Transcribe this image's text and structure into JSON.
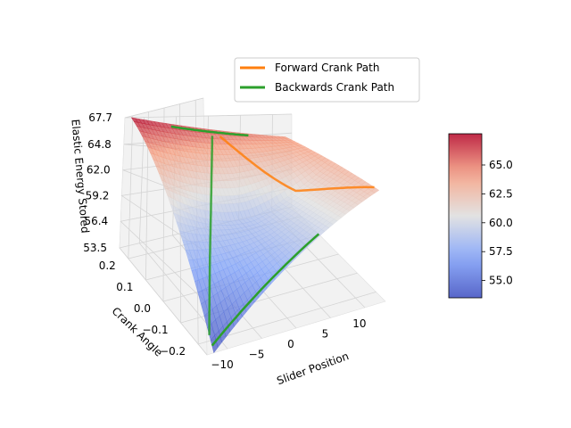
{
  "chart_data": {
    "type": "surface",
    "xlabel": "Slider Position",
    "ylabel": "Crank Angle",
    "zlabel": "Elastic Energy Stored",
    "xlim": [
      -13,
      13
    ],
    "ylim": [
      -0.25,
      0.25
    ],
    "zlim": [
      53.5,
      67.7
    ],
    "x_ticks": [
      "−10",
      "−5",
      "0",
      "5",
      "10"
    ],
    "y_ticks": [
      "−0.2",
      "−0.1",
      "0.0",
      "0.1",
      "0.2"
    ],
    "z_ticks": [
      "53.5",
      "56.4",
      "59.2",
      "62.0",
      "64.8",
      "67.7"
    ],
    "colorbar": {
      "range": [
        53.5,
        67.7
      ],
      "ticks": [
        "55.0",
        "57.5",
        "60.0",
        "62.5",
        "65.0"
      ],
      "colormap": "coolwarm"
    },
    "surface": {
      "corner_values": [
        {
          "x": -12,
          "y": 0.25,
          "z": 67.7
        },
        {
          "x": 12,
          "y": 0.25,
          "z": 64.3
        },
        {
          "x": 12,
          "y": -0.25,
          "z": 62.8
        },
        {
          "x": -12,
          "y": -0.25,
          "z": 53.5
        }
      ],
      "valley_value": 55.2
    },
    "series": [
      {
        "name": "Forward Crank Path",
        "color": "#ff7f0e"
      },
      {
        "name": "Backwards Crank Path",
        "color": "#2ca02c"
      }
    ],
    "legend_position": "top-center"
  }
}
